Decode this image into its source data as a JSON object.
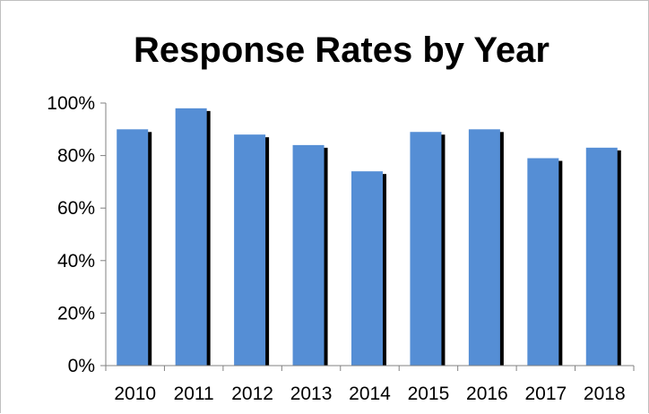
{
  "chart_data": {
    "type": "bar",
    "title": "Response Rates by Year",
    "xlabel": "",
    "ylabel": "",
    "categories": [
      "2010",
      "2011",
      "2012",
      "2013",
      "2014",
      "2015",
      "2016",
      "2017",
      "2018"
    ],
    "values": [
      90,
      98,
      88,
      84,
      74,
      89,
      90,
      79,
      83
    ],
    "value_unit": "%",
    "ylim": [
      0,
      100
    ],
    "yticks": [
      0,
      20,
      40,
      60,
      80,
      100
    ],
    "ytick_labels": [
      "0%",
      "20%",
      "40%",
      "60%",
      "80%",
      "100%"
    ],
    "grid": false,
    "legend": "none",
    "bar_color": "#558ed5",
    "bar_shadow_color": "#000000"
  }
}
